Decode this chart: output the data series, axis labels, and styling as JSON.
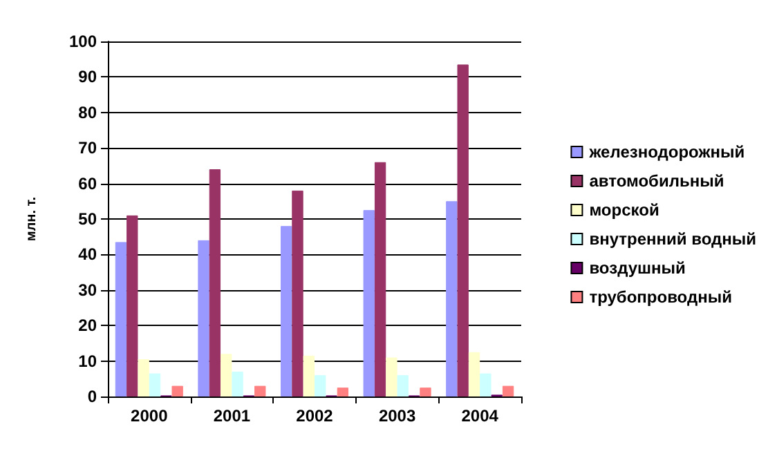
{
  "chart_data": {
    "type": "bar",
    "ylabel": "млн. т.",
    "categories": [
      "2000",
      "2001",
      "2002",
      "2003",
      "2004"
    ],
    "series": [
      {
        "name": "железнодорожный",
        "color": "#9999ff",
        "values": [
          43.5,
          44,
          48,
          52.5,
          55
        ]
      },
      {
        "name": "автомобильный",
        "color": "#993366",
        "values": [
          51,
          64,
          58,
          66,
          93.5
        ]
      },
      {
        "name": "морской",
        "color": "#ffffcc",
        "values": [
          10.5,
          12,
          11.5,
          11,
          12.5
        ]
      },
      {
        "name": "внутренний водный",
        "color": "#ccffff",
        "values": [
          6.5,
          7,
          6,
          6,
          6.5
        ]
      },
      {
        "name": "воздушный",
        "color": "#660066",
        "values": [
          0.3,
          0.3,
          0.3,
          0.3,
          0.5
        ]
      },
      {
        "name": "трубопроводный",
        "color": "#ff8080",
        "values": [
          3,
          3,
          2.5,
          2.5,
          3
        ]
      }
    ],
    "ylim": [
      0,
      100
    ],
    "yticks": [
      0,
      10,
      20,
      30,
      40,
      50,
      60,
      70,
      80,
      90,
      100
    ],
    "grid": "y",
    "legend": "right"
  }
}
